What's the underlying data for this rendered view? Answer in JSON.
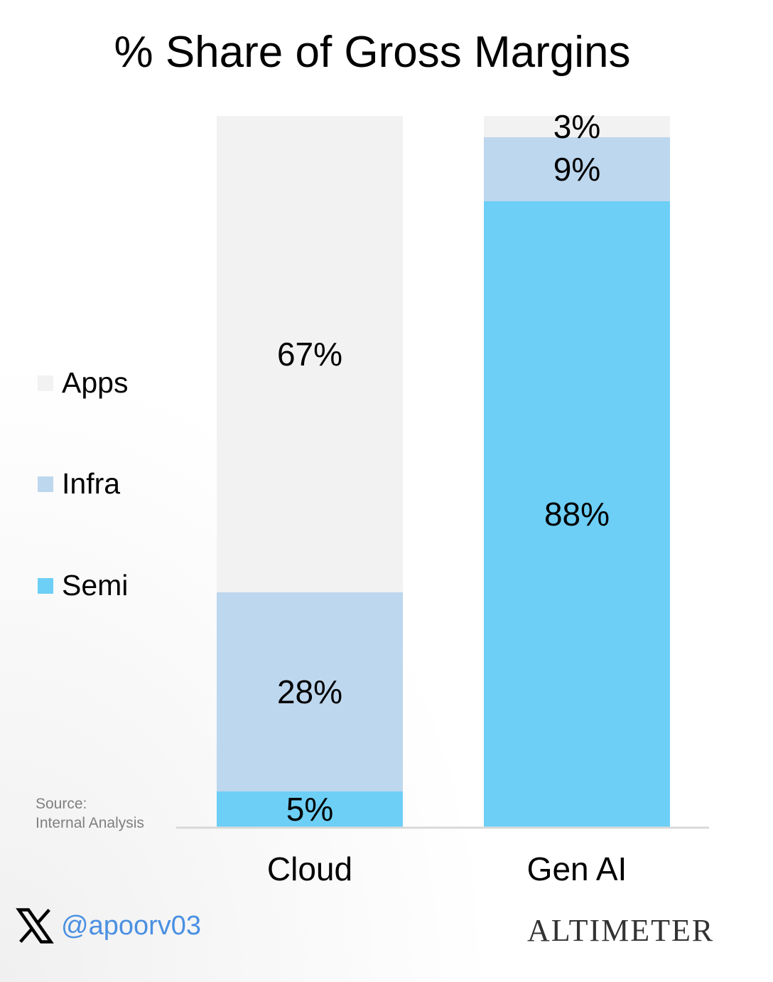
{
  "chart_data": {
    "type": "bar",
    "stacked": true,
    "title": "% Share of Gross Margins",
    "categories": [
      "Cloud",
      "Gen AI"
    ],
    "series": [
      {
        "name": "Semi",
        "values": [
          5,
          88
        ],
        "color": "#6dcff6"
      },
      {
        "name": "Infra",
        "values": [
          28,
          9
        ],
        "color": "#bdd7ee"
      },
      {
        "name": "Apps",
        "values": [
          67,
          3
        ],
        "color": "#f2f2f2"
      }
    ],
    "data_label_suffix": "%",
    "ylim": [
      0,
      100
    ],
    "legend": [
      "Apps",
      "Infra",
      "Semi"
    ],
    "legend_position": "left",
    "grid": false
  },
  "source": {
    "line1": "Source:",
    "line2": "Internal Analysis"
  },
  "footer": {
    "handle": "@apoorv03",
    "brand": "ALTIMETER"
  }
}
